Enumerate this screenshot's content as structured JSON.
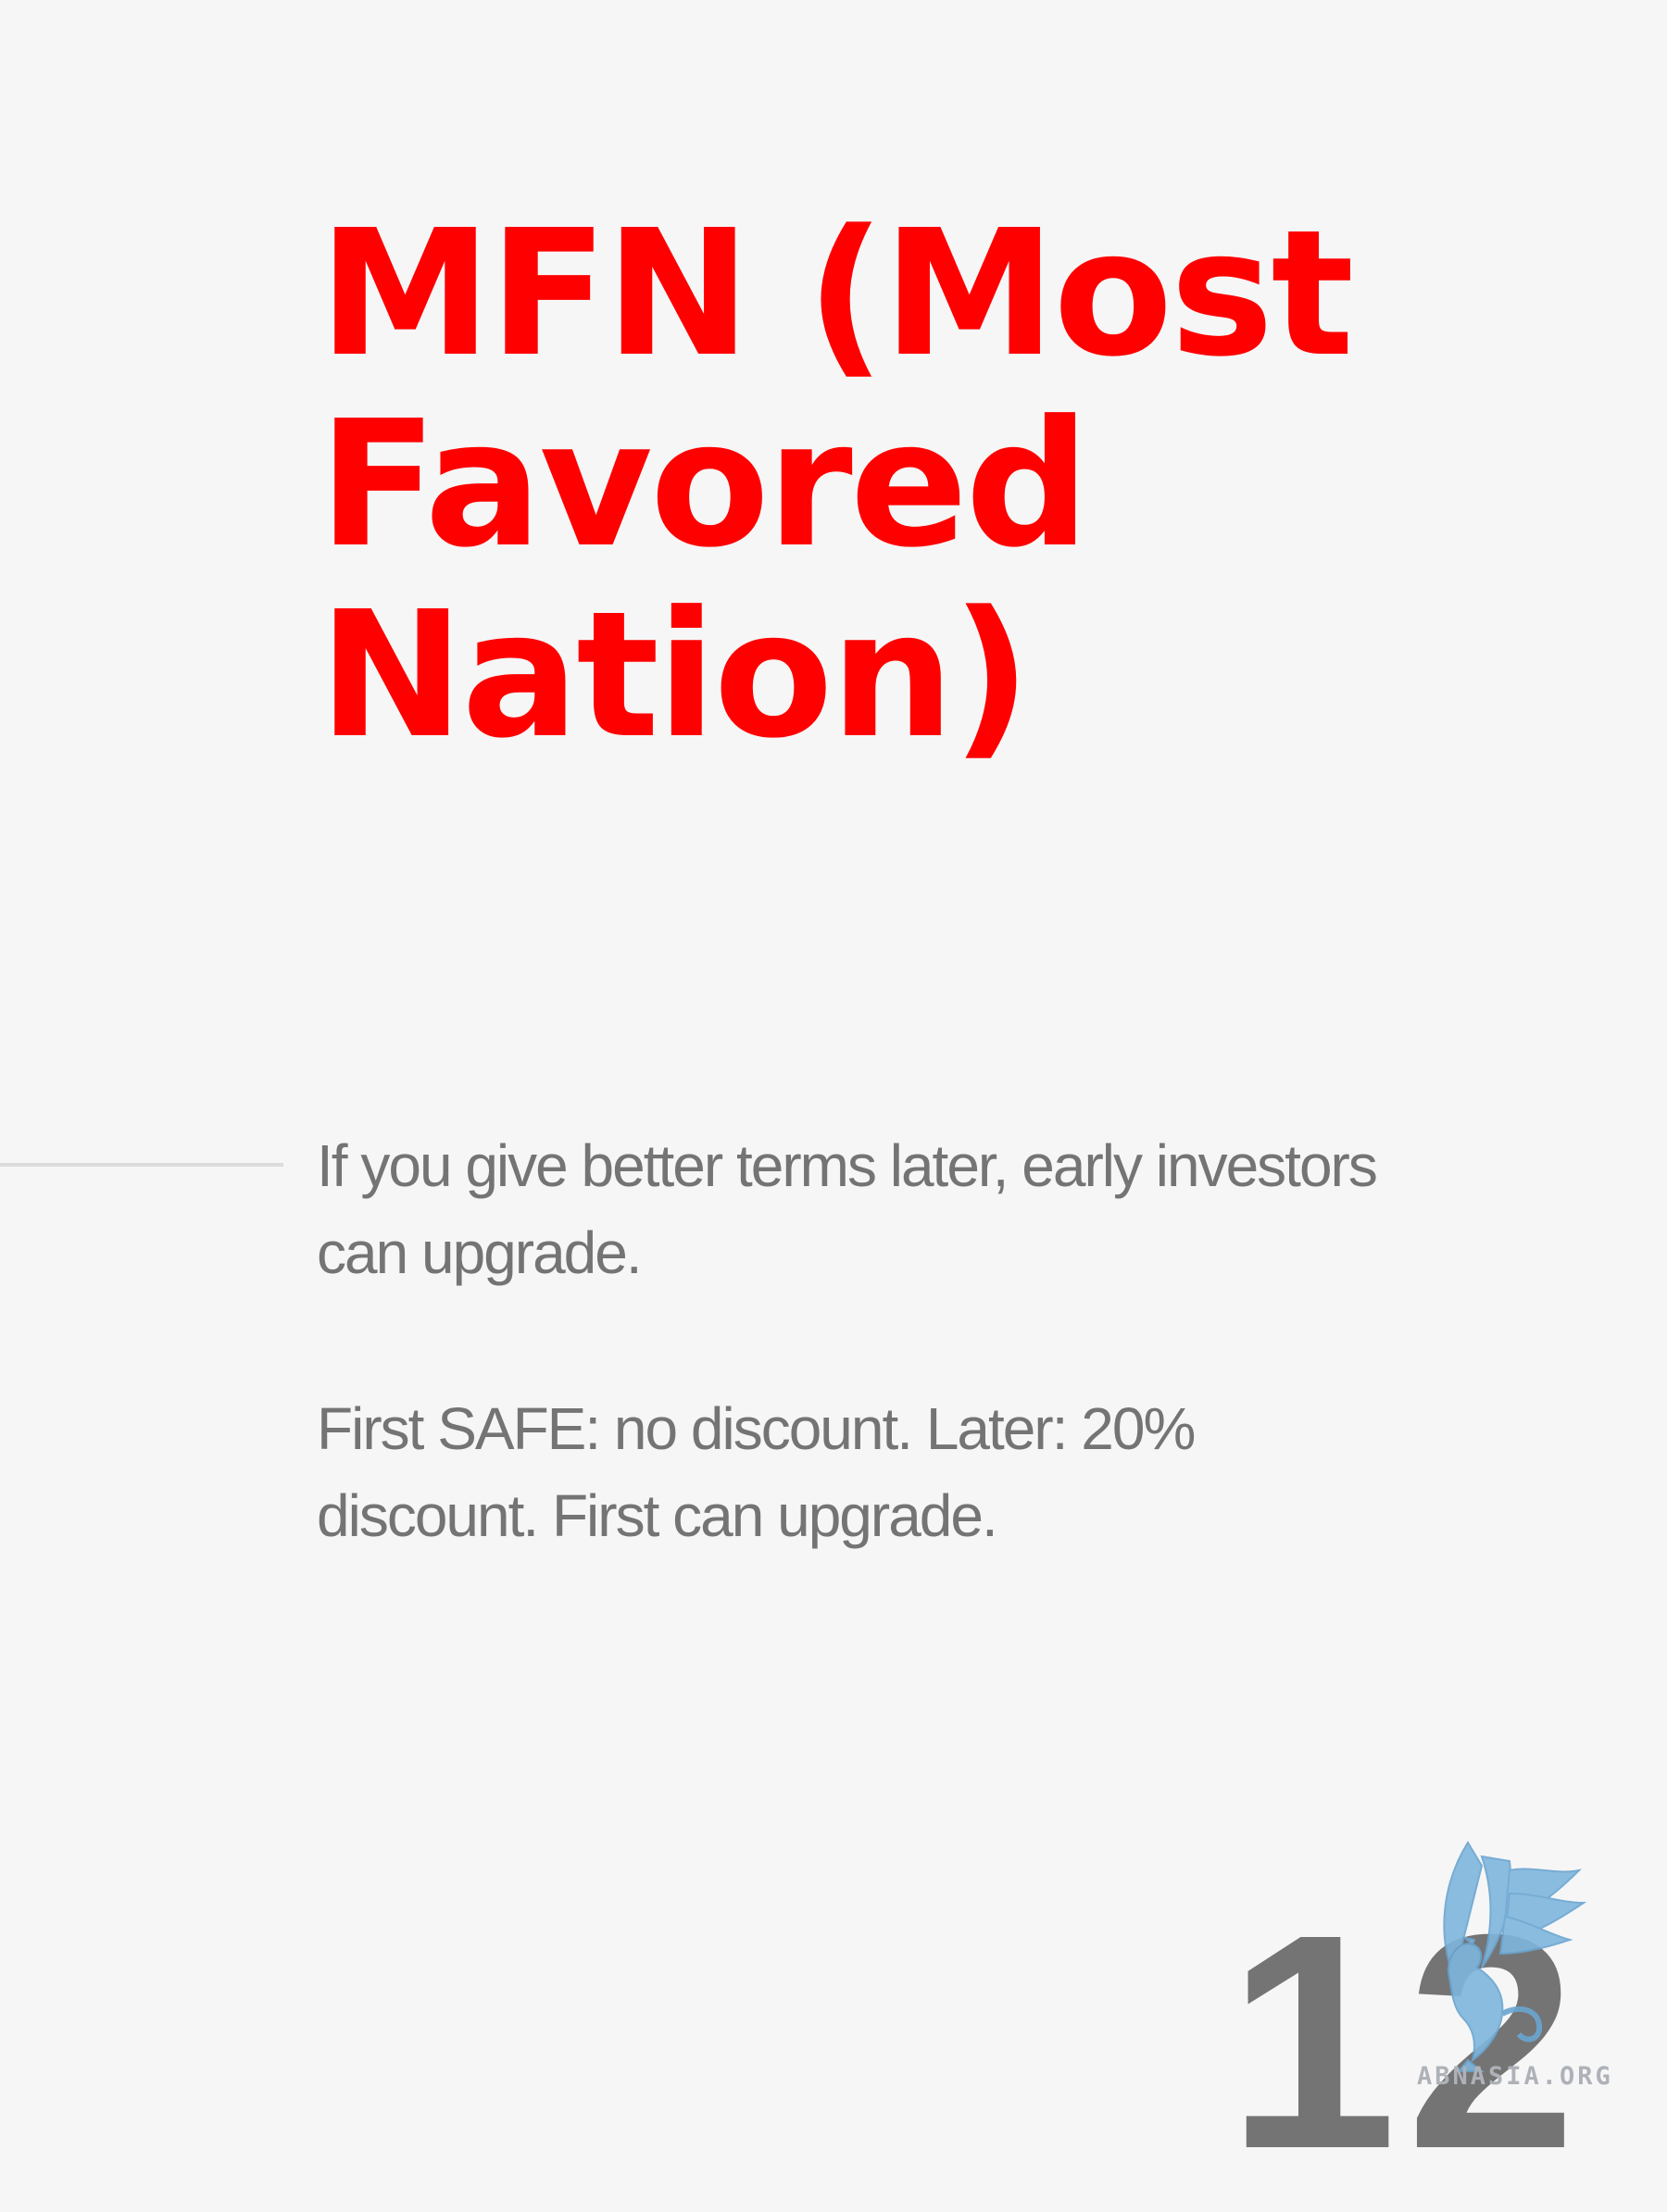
{
  "title": {
    "lines": [
      "MFN (Most",
      "Favored",
      "Nation)"
    ]
  },
  "paragraphs": [
    {
      "lines": [
        "If you give better terms later, early investors",
        "can upgrade."
      ]
    },
    {
      "lines": [
        "First SAFE: no discount. Later: 20%",
        "discount. First can upgrade."
      ]
    }
  ],
  "page_number": "12",
  "logo": {
    "text": "ABNASIA.ORG",
    "icon": "griffin-logo-icon"
  },
  "colors": {
    "title": "#ff0000",
    "body_text": "#747474",
    "background": "#f6f6f6",
    "divider": "#dcdcdc",
    "logo": "#7fb6dd"
  }
}
